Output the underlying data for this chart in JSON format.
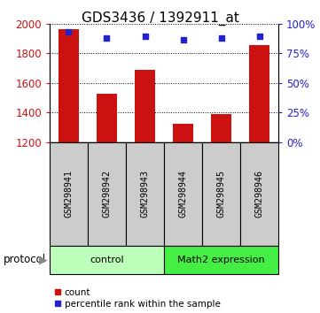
{
  "title": "GDS3436 / 1392911_at",
  "samples": [
    "GSM298941",
    "GSM298942",
    "GSM298943",
    "GSM298944",
    "GSM298945",
    "GSM298946"
  ],
  "counts": [
    1960,
    1530,
    1690,
    1325,
    1390,
    1855
  ],
  "percentile_ranks": [
    93,
    88,
    89,
    86,
    88,
    89
  ],
  "ylim_left": [
    1200,
    2000
  ],
  "ylim_right": [
    0,
    100
  ],
  "yticks_left": [
    1200,
    1400,
    1600,
    1800,
    2000
  ],
  "yticks_right": [
    0,
    25,
    50,
    75,
    100
  ],
  "bar_color": "#cc1111",
  "dot_color": "#2222cc",
  "bar_bottom": 1200,
  "groups": [
    {
      "label": "control",
      "indices": [
        0,
        1,
        2
      ],
      "color": "#bbffbb"
    },
    {
      "label": "Math2 expression",
      "indices": [
        3,
        4,
        5
      ],
      "color": "#44ee44"
    }
  ],
  "protocol_label": "protocol",
  "legend_count_label": "count",
  "legend_percentile_label": "percentile rank within the sample",
  "background_plot": "#ffffff",
  "background_labels": "#cccccc",
  "title_fontsize": 11,
  "tick_fontsize": 8.5
}
